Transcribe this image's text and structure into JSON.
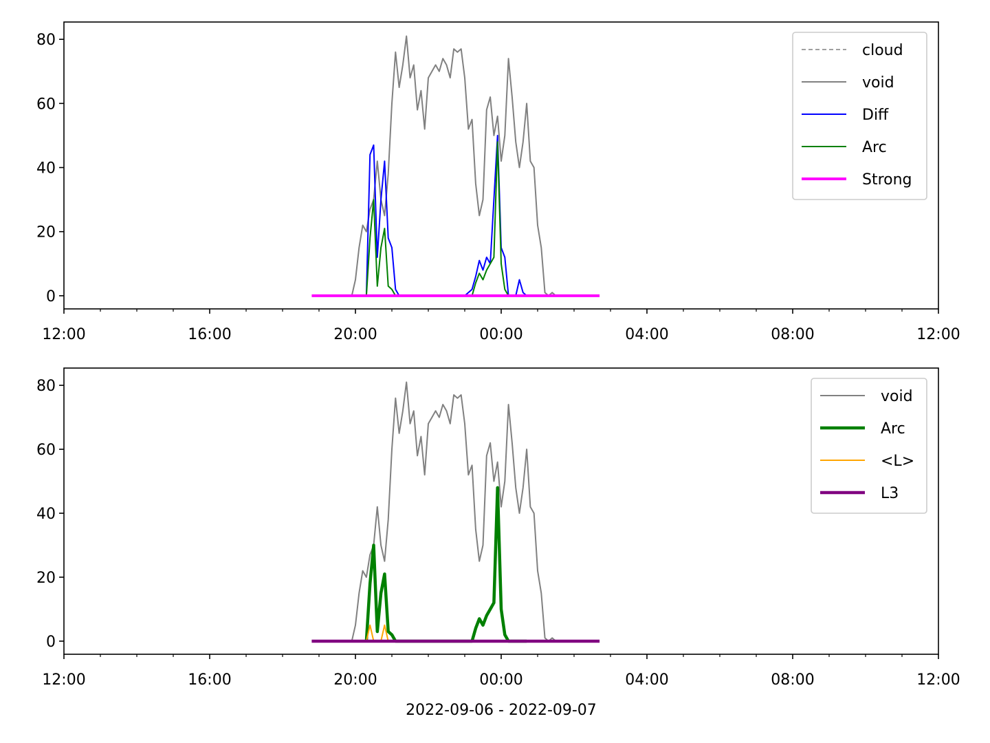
{
  "chart_data": [
    {
      "type": "line",
      "x": [
        18.8,
        18.9,
        19.0,
        19.1,
        19.2,
        19.3,
        19.4,
        19.5,
        19.6,
        19.7,
        19.8,
        19.9,
        20.0,
        20.1,
        20.2,
        20.3,
        20.4,
        20.5,
        20.6,
        20.7,
        20.8,
        20.9,
        21.0,
        21.1,
        21.2,
        21.3,
        21.4,
        21.5,
        21.6,
        21.7,
        21.8,
        21.9,
        22.0,
        22.1,
        22.2,
        22.3,
        22.4,
        22.5,
        22.6,
        22.7,
        22.8,
        22.9,
        23.0,
        23.1,
        23.2,
        23.3,
        23.4,
        23.5,
        23.6,
        23.7,
        23.8,
        23.9,
        24.0,
        24.1,
        24.2,
        24.3,
        24.4,
        24.5,
        24.6,
        24.7,
        24.8,
        24.9,
        25.0,
        25.1,
        25.2,
        25.3,
        25.4,
        25.5,
        25.6,
        25.7,
        25.8,
        25.9,
        26.0,
        26.1,
        26.2,
        26.3,
        26.4,
        26.5,
        26.6,
        26.7
      ],
      "xlim": [
        12,
        36
      ],
      "xticks": [
        {
          "value": 12,
          "label": "12:00"
        },
        {
          "value": 16,
          "label": "16:00"
        },
        {
          "value": 20,
          "label": "20:00"
        },
        {
          "value": 24,
          "label": "00:00"
        },
        {
          "value": 28,
          "label": "04:00"
        },
        {
          "value": 32,
          "label": "08:00"
        },
        {
          "value": 36,
          "label": "12:00"
        }
      ],
      "xminorticks": [
        13,
        14,
        15,
        17,
        18,
        19,
        21,
        22,
        23,
        25,
        26,
        27,
        29,
        30,
        31,
        33,
        34,
        35
      ],
      "ylim": [
        -4.1,
        85.4
      ],
      "yticks": [
        0,
        20,
        40,
        60,
        80
      ],
      "legend": "upper right",
      "series": [
        {
          "name": "cloud",
          "color": "#808080",
          "linestyle": "dashed",
          "linewidth": 1.5,
          "values": [
            null,
            null,
            null,
            null,
            null,
            null,
            null,
            null,
            null,
            null,
            null,
            null,
            null,
            null,
            null,
            null,
            null,
            null,
            null,
            null,
            null,
            null,
            null,
            null,
            null,
            null,
            null,
            null,
            null,
            null,
            null,
            null,
            null,
            null,
            null,
            null,
            null,
            null,
            null,
            null,
            null,
            null,
            null,
            null,
            null,
            null,
            null,
            null,
            null,
            null,
            null,
            null,
            null,
            null,
            null,
            null,
            null,
            null,
            null,
            null,
            null,
            null,
            null,
            null,
            null,
            null,
            null,
            null,
            null,
            null,
            null,
            null,
            null,
            null,
            null,
            null,
            null,
            null,
            null,
            null
          ]
        },
        {
          "name": "void",
          "color": "#808080",
          "linestyle": "solid",
          "linewidth": 2,
          "values": [
            null,
            null,
            null,
            null,
            null,
            null,
            null,
            null,
            null,
            null,
            null,
            0,
            5,
            15,
            22,
            20,
            27,
            30,
            42,
            30,
            25,
            38,
            60,
            76,
            65,
            72,
            81,
            68,
            72,
            58,
            64,
            52,
            68,
            70,
            72,
            70,
            74,
            72,
            68,
            77,
            76,
            77,
            68,
            52,
            55,
            35,
            25,
            30,
            58,
            62,
            50,
            56,
            42,
            50,
            74,
            62,
            48,
            40,
            48,
            60,
            42,
            40,
            22,
            15,
            1,
            0,
            1,
            0,
            null,
            null,
            null,
            null,
            null,
            null,
            null,
            null,
            null,
            null,
            null,
            null
          ]
        },
        {
          "name": "Diff",
          "color": "#0000ff",
          "linestyle": "solid",
          "linewidth": 2,
          "values": [
            null,
            null,
            null,
            null,
            null,
            null,
            null,
            null,
            null,
            null,
            null,
            null,
            null,
            null,
            null,
            0,
            44,
            47,
            12,
            30,
            42,
            18,
            15,
            2,
            0,
            0,
            0,
            0,
            0,
            0,
            0,
            0,
            0,
            0,
            0,
            0,
            0,
            0,
            0,
            0,
            0,
            0,
            0,
            1,
            2,
            6,
            11,
            8,
            12,
            10,
            30,
            50,
            15,
            12,
            0,
            0,
            0,
            5,
            1,
            0,
            null,
            null,
            null,
            null,
            null,
            null,
            null,
            null,
            null,
            null,
            null,
            null,
            null,
            null,
            null,
            null,
            null,
            null,
            null,
            null
          ]
        },
        {
          "name": "Arc",
          "color": "#008000",
          "linestyle": "solid",
          "linewidth": 2,
          "values": [
            null,
            null,
            null,
            null,
            null,
            null,
            null,
            null,
            null,
            null,
            null,
            null,
            null,
            null,
            null,
            0,
            18,
            30,
            3,
            15,
            21,
            3,
            2,
            0,
            0,
            0,
            0,
            0,
            0,
            0,
            0,
            0,
            0,
            0,
            0,
            0,
            0,
            0,
            0,
            0,
            0,
            0,
            0,
            0,
            0,
            4,
            7,
            5,
            8,
            10,
            12,
            48,
            10,
            2,
            0,
            0,
            0,
            0,
            0,
            0,
            null,
            null,
            null,
            null,
            null,
            null,
            null,
            null,
            null,
            null,
            null,
            null,
            null,
            null,
            null,
            null,
            null,
            null,
            null,
            null
          ]
        },
        {
          "name": "Strong",
          "color": "#ff00ff",
          "linestyle": "solid",
          "linewidth": 4,
          "values": [
            0,
            0,
            0,
            0,
            0,
            0,
            0,
            0,
            0,
            0,
            0,
            0,
            0,
            0,
            0,
            0,
            0,
            0,
            0,
            0,
            0,
            0,
            0,
            0,
            0,
            0,
            0,
            0,
            0,
            0,
            0,
            0,
            0,
            0,
            0,
            0,
            0,
            0,
            0,
            0,
            0,
            0,
            0,
            0,
            0,
            0,
            0,
            0,
            0,
            0,
            0,
            0,
            0,
            0,
            0,
            0,
            0,
            0,
            0,
            0,
            0,
            0,
            0,
            0,
            0,
            0,
            0,
            0,
            0,
            0,
            0,
            0,
            0,
            0,
            0,
            0,
            0,
            0,
            0,
            0
          ]
        }
      ]
    },
    {
      "type": "line",
      "x": [
        18.8,
        18.9,
        19.0,
        19.1,
        19.2,
        19.3,
        19.4,
        19.5,
        19.6,
        19.7,
        19.8,
        19.9,
        20.0,
        20.1,
        20.2,
        20.3,
        20.4,
        20.5,
        20.6,
        20.7,
        20.8,
        20.9,
        21.0,
        21.1,
        21.2,
        21.3,
        21.4,
        21.5,
        21.6,
        21.7,
        21.8,
        21.9,
        22.0,
        22.1,
        22.2,
        22.3,
        22.4,
        22.5,
        22.6,
        22.7,
        22.8,
        22.9,
        23.0,
        23.1,
        23.2,
        23.3,
        23.4,
        23.5,
        23.6,
        23.7,
        23.8,
        23.9,
        24.0,
        24.1,
        24.2,
        24.3,
        24.4,
        24.5,
        24.6,
        24.7,
        24.8,
        24.9,
        25.0,
        25.1,
        25.2,
        25.3,
        25.4,
        25.5,
        25.6,
        25.7,
        25.8,
        25.9,
        26.0,
        26.1,
        26.2,
        26.3,
        26.4,
        26.5,
        26.6,
        26.7
      ],
      "xlim": [
        12,
        36
      ],
      "xticks": [
        {
          "value": 12,
          "label": "12:00"
        },
        {
          "value": 16,
          "label": "16:00"
        },
        {
          "value": 20,
          "label": "20:00"
        },
        {
          "value": 24,
          "label": "00:00"
        },
        {
          "value": 28,
          "label": "04:00"
        },
        {
          "value": 32,
          "label": "08:00"
        },
        {
          "value": 36,
          "label": "12:00"
        }
      ],
      "xminorticks": [
        13,
        14,
        15,
        17,
        18,
        19,
        21,
        22,
        23,
        25,
        26,
        27,
        29,
        30,
        31,
        33,
        34,
        35
      ],
      "xlabel": "2022-09-06 - 2022-09-07",
      "ylim": [
        -4.1,
        85.4
      ],
      "yticks": [
        0,
        20,
        40,
        60,
        80
      ],
      "legend": "upper right",
      "series": [
        {
          "name": "void",
          "color": "#808080",
          "linestyle": "solid",
          "linewidth": 2,
          "values": [
            null,
            null,
            null,
            null,
            null,
            null,
            null,
            null,
            null,
            null,
            null,
            0,
            5,
            15,
            22,
            20,
            27,
            30,
            42,
            30,
            25,
            38,
            60,
            76,
            65,
            72,
            81,
            68,
            72,
            58,
            64,
            52,
            68,
            70,
            72,
            70,
            74,
            72,
            68,
            77,
            76,
            77,
            68,
            52,
            55,
            35,
            25,
            30,
            58,
            62,
            50,
            56,
            42,
            50,
            74,
            62,
            48,
            40,
            48,
            60,
            42,
            40,
            22,
            15,
            1,
            0,
            1,
            0,
            null,
            null,
            null,
            null,
            null,
            null,
            null,
            null,
            null,
            null,
            null,
            null
          ]
        },
        {
          "name": "Arc",
          "color": "#008000",
          "linestyle": "solid",
          "linewidth": 4.5,
          "values": [
            null,
            null,
            null,
            null,
            null,
            null,
            null,
            null,
            null,
            null,
            null,
            null,
            null,
            null,
            null,
            0,
            18,
            30,
            3,
            15,
            21,
            3,
            2,
            0,
            0,
            0,
            0,
            0,
            0,
            0,
            0,
            0,
            0,
            0,
            0,
            0,
            0,
            0,
            0,
            0,
            0,
            0,
            0,
            0,
            0,
            4,
            7,
            5,
            8,
            10,
            12,
            48,
            10,
            2,
            0,
            0,
            0,
            0,
            0,
            0,
            null,
            null,
            null,
            null,
            null,
            null,
            null,
            null,
            null,
            null,
            null,
            null,
            null,
            null,
            null,
            null,
            null,
            null,
            null,
            null
          ]
        },
        {
          "name": "<L>",
          "color": "#ffa500",
          "linestyle": "solid",
          "linewidth": 2,
          "values": [
            null,
            null,
            null,
            null,
            null,
            null,
            null,
            null,
            null,
            null,
            null,
            null,
            null,
            null,
            null,
            0,
            5,
            0,
            0,
            0,
            5,
            0,
            0,
            0,
            0,
            0,
            0,
            0,
            0,
            0,
            0,
            0,
            0,
            0,
            0,
            0,
            0,
            0,
            0,
            0,
            0,
            0,
            0,
            0,
            0,
            0,
            0,
            0,
            0,
            0,
            0,
            0,
            0,
            0,
            0,
            0,
            0,
            0,
            0,
            0,
            null,
            null,
            null,
            null,
            null,
            null,
            null,
            null,
            null,
            null,
            null,
            null,
            null,
            null,
            null,
            null,
            null,
            null,
            null,
            null
          ]
        },
        {
          "name": "L3",
          "color": "#800080",
          "linestyle": "solid",
          "linewidth": 4.5,
          "values": [
            0,
            0,
            0,
            0,
            0,
            0,
            0,
            0,
            0,
            0,
            0,
            0,
            0,
            0,
            0,
            0,
            0,
            0,
            0,
            0,
            0,
            0,
            0,
            0,
            0,
            0,
            0,
            0,
            0,
            0,
            0,
            0,
            0,
            0,
            0,
            0,
            0,
            0,
            0,
            0,
            0,
            0,
            0,
            0,
            0,
            0,
            0,
            0,
            0,
            0,
            0,
            0,
            0,
            0,
            0,
            0,
            0,
            0,
            0,
            0,
            0,
            0,
            0,
            0,
            0,
            0,
            0,
            0,
            0,
            0,
            0,
            0,
            0,
            0,
            0,
            0,
            0,
            0,
            0,
            0
          ]
        }
      ]
    }
  ]
}
